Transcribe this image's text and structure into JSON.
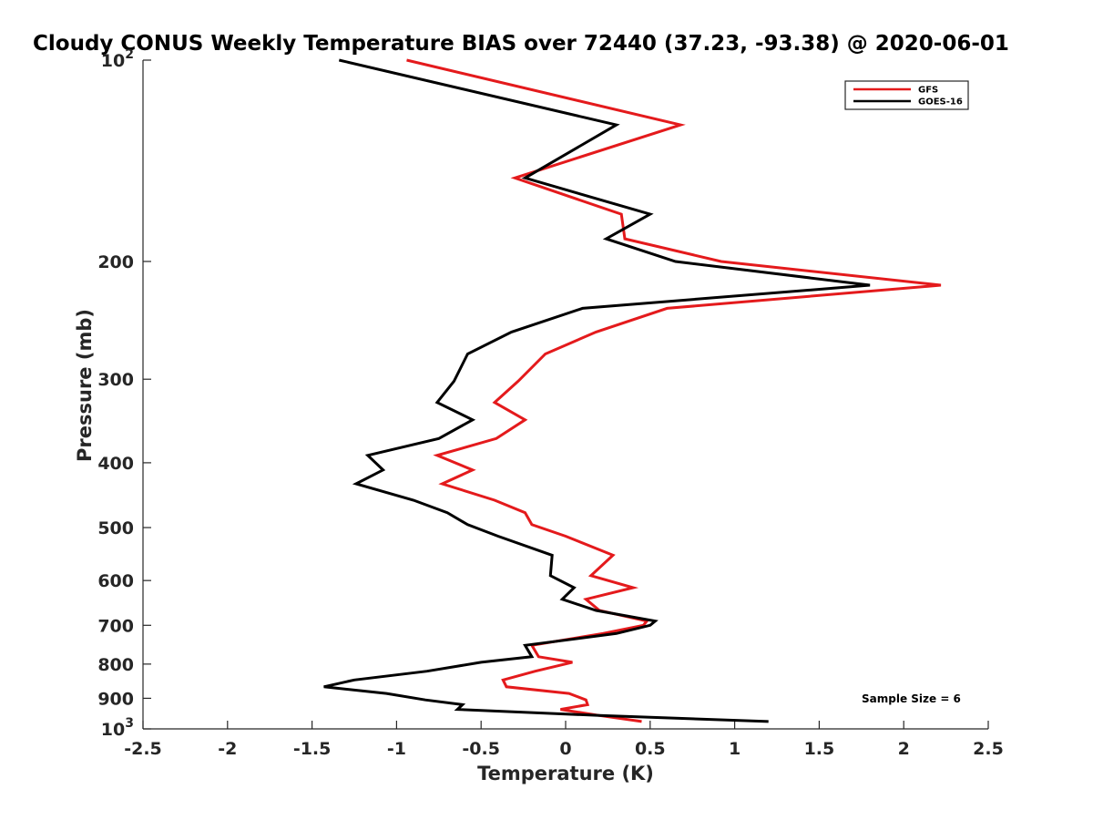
{
  "chart_data": {
    "type": "line",
    "title": "Cloudy CONUS Weekly Temperature BIAS over 72440 (37.23, -93.38) @ 2020-06-01",
    "xlabel": "Temperature (K)",
    "ylabel": "Pressure (mb)",
    "xlim": [
      -2.5,
      2.5
    ],
    "ylim": [
      100,
      1000
    ],
    "y_scale": "log",
    "y_reversed": true,
    "x_ticks": [
      "-2.5",
      "-2",
      "-1.5",
      "-1",
      "-0.5",
      "0",
      "0.5",
      "1",
      "1.5",
      "2",
      "2.5"
    ],
    "y_ticks": [
      {
        "value": 100,
        "base": "10",
        "exp": "2"
      },
      {
        "value": 200,
        "label": "200"
      },
      {
        "value": 300,
        "label": "300"
      },
      {
        "value": 400,
        "label": "400"
      },
      {
        "value": 500,
        "label": "500"
      },
      {
        "value": 600,
        "label": "600"
      },
      {
        "value": 700,
        "label": "700"
      },
      {
        "value": 800,
        "label": "800"
      },
      {
        "value": 900,
        "label": "900"
      },
      {
        "value": 1000,
        "base": "10",
        "exp": "3"
      }
    ],
    "grid": false,
    "legend_position": "top-right",
    "annotation": "Sample Size = 6",
    "series": [
      {
        "name": "GFS",
        "color": "#e41a1c",
        "points": [
          [
            -0.94,
            100
          ],
          [
            0.68,
            125
          ],
          [
            -0.3,
            150
          ],
          [
            0.33,
            170
          ],
          [
            0.35,
            185
          ],
          [
            0.92,
            200
          ],
          [
            2.22,
            217
          ],
          [
            0.6,
            235
          ],
          [
            0.18,
            255
          ],
          [
            -0.12,
            275
          ],
          [
            -0.28,
            302
          ],
          [
            -0.42,
            325
          ],
          [
            -0.24,
            345
          ],
          [
            -0.41,
            368
          ],
          [
            -0.76,
            390
          ],
          [
            -0.55,
            410
          ],
          [
            -0.73,
            430
          ],
          [
            -0.42,
            455
          ],
          [
            -0.24,
            475
          ],
          [
            -0.2,
            495
          ],
          [
            0.0,
            515
          ],
          [
            0.28,
            550
          ],
          [
            0.15,
            590
          ],
          [
            0.4,
            615
          ],
          [
            0.12,
            640
          ],
          [
            0.2,
            665
          ],
          [
            0.48,
            690
          ],
          [
            0.46,
            700
          ],
          [
            0.22,
            720
          ],
          [
            -0.2,
            750
          ],
          [
            -0.16,
            780
          ],
          [
            0.04,
            795
          ],
          [
            -0.18,
            820
          ],
          [
            -0.37,
            845
          ],
          [
            -0.35,
            865
          ],
          [
            0.02,
            885
          ],
          [
            0.12,
            905
          ],
          [
            0.13,
            920
          ],
          [
            -0.03,
            935
          ],
          [
            0.2,
            955
          ],
          [
            0.45,
            975
          ]
        ]
      },
      {
        "name": "GOES-16",
        "color": "#000000",
        "points": [
          [
            -1.34,
            100
          ],
          [
            0.3,
            125
          ],
          [
            -0.24,
            150
          ],
          [
            0.5,
            170
          ],
          [
            0.24,
            185
          ],
          [
            0.65,
            200
          ],
          [
            1.8,
            217
          ],
          [
            0.1,
            235
          ],
          [
            -0.32,
            255
          ],
          [
            -0.58,
            275
          ],
          [
            -0.66,
            302
          ],
          [
            -0.76,
            325
          ],
          [
            -0.55,
            345
          ],
          [
            -0.75,
            368
          ],
          [
            -1.17,
            390
          ],
          [
            -1.08,
            410
          ],
          [
            -1.24,
            430
          ],
          [
            -0.9,
            455
          ],
          [
            -0.7,
            475
          ],
          [
            -0.58,
            495
          ],
          [
            -0.4,
            515
          ],
          [
            -0.08,
            550
          ],
          [
            -0.09,
            590
          ],
          [
            0.05,
            615
          ],
          [
            -0.02,
            640
          ],
          [
            0.18,
            665
          ],
          [
            0.53,
            690
          ],
          [
            0.5,
            700
          ],
          [
            0.3,
            720
          ],
          [
            -0.24,
            750
          ],
          [
            -0.2,
            780
          ],
          [
            -0.5,
            795
          ],
          [
            -0.82,
            820
          ],
          [
            -1.25,
            845
          ],
          [
            -1.43,
            865
          ],
          [
            -1.06,
            885
          ],
          [
            -0.83,
            905
          ],
          [
            -0.61,
            920
          ],
          [
            -0.64,
            935
          ],
          [
            0.2,
            955
          ],
          [
            1.2,
            975
          ]
        ]
      }
    ]
  }
}
